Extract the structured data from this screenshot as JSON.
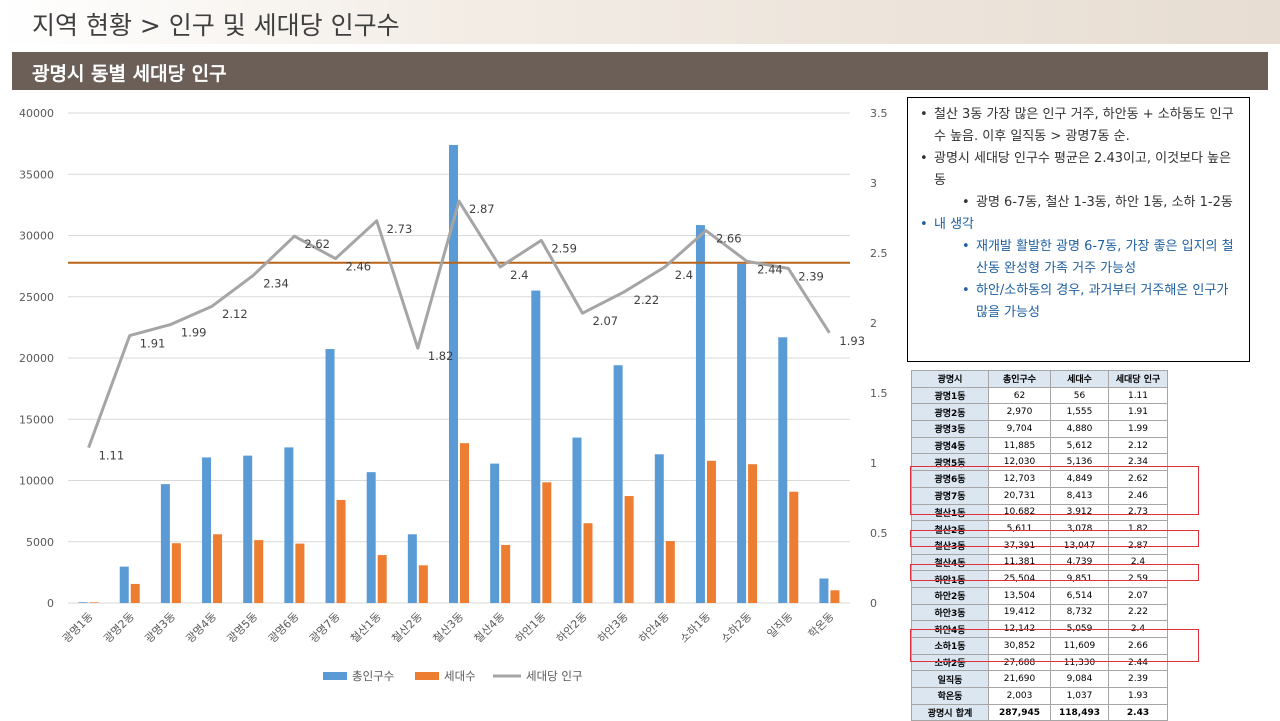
{
  "page": {
    "header": "지역 현황 > 인구 및 세대당 인구수",
    "subheader": "광명시 동별 세대당 인구"
  },
  "colors": {
    "population": "#5b9bd5",
    "households": "#ed7d31",
    "ratio": "#a5a5a5",
    "average": "#b8641b",
    "highlight": "#e0313b"
  },
  "chart_data": {
    "type": "bar",
    "categories": [
      "광명1동",
      "광명2동",
      "광명3동",
      "광명4동",
      "광명5동",
      "광명6동",
      "광명7동",
      "철산1동",
      "철산2동",
      "철산3동",
      "철산4동",
      "하안1동",
      "하안2동",
      "하안3동",
      "하안4동",
      "소하1동",
      "소하2동",
      "일직동",
      "학온동"
    ],
    "series": [
      {
        "name": "총인구수",
        "type": "bar",
        "axis": "left",
        "values": [
          62,
          2970,
          9704,
          11885,
          12030,
          12703,
          20731,
          10682,
          5611,
          37391,
          11381,
          25504,
          13504,
          19412,
          12142,
          30852,
          27688,
          21690,
          2003
        ]
      },
      {
        "name": "세대수",
        "type": "bar",
        "axis": "left",
        "values": [
          56,
          1555,
          4880,
          5612,
          5136,
          4849,
          8413,
          3912,
          3078,
          13047,
          4739,
          9851,
          6514,
          8732,
          5059,
          11609,
          11330,
          9084,
          1037
        ]
      },
      {
        "name": "세대당 인구",
        "type": "line",
        "axis": "right",
        "values": [
          1.11,
          1.91,
          1.99,
          2.12,
          2.34,
          2.62,
          2.46,
          2.73,
          1.82,
          2.87,
          2.4,
          2.59,
          2.07,
          2.22,
          2.4,
          2.66,
          2.44,
          2.39,
          1.93
        ]
      }
    ],
    "data_labels": [
      "1.11",
      "1.91",
      "1.99",
      "2.12",
      "2.34",
      "2.62",
      "2.46",
      "2.73",
      "1.82",
      "2.87",
      "2.4",
      "2.59",
      "2.07",
      "2.22",
      "2.4",
      "2.66",
      "2.44",
      "2.39",
      "1.93"
    ],
    "average_line": 2.43,
    "left_axis": {
      "ylim": [
        0,
        40000
      ],
      "ticks": [
        "0",
        "5000",
        "10000",
        "15000",
        "20000",
        "25000",
        "30000",
        "35000",
        "40000"
      ]
    },
    "right_axis": {
      "ylim": [
        0,
        3.5
      ],
      "ticks": [
        "0",
        "0.5",
        "1",
        "1.5",
        "2",
        "2.5",
        "3",
        "3.5"
      ]
    },
    "legend": {
      "position": "bottom",
      "items": [
        "총인구수",
        "세대수",
        "세대당 인구"
      ]
    },
    "grid": true
  },
  "notes": {
    "item1": "철산 3동 가장 많은 인구 거주, 하안동 + 소하동도 인구수 높음. 이후 일직동 > 광명7동 순.",
    "item2": "광명시 세대당 인구수 평균은 2.43이고, 이것보다 높은 동",
    "item2_sub": "광명 6-7동, 철산 1-3동, 하안 1동, 소하 1-2동",
    "item3": "내 생각",
    "item3_sub1": "재개발 활발한 광명 6-7동, 가장 좋은 입지의 철산동 완성형 가족 거주 가능성",
    "item3_sub2": "하안/소하동의 경우, 과거부터 거주해온 인구가 많을 가능성"
  },
  "table": {
    "headers": [
      "광명시",
      "총인구수",
      "세대수",
      "세대당 인구"
    ],
    "rows": [
      [
        "광명1동",
        "62",
        "56",
        "1.11"
      ],
      [
        "광명2동",
        "2,970",
        "1,555",
        "1.91"
      ],
      [
        "광명3동",
        "9,704",
        "4,880",
        "1.99"
      ],
      [
        "광명4동",
        "11,885",
        "5,612",
        "2.12"
      ],
      [
        "광명5동",
        "12,030",
        "5,136",
        "2.34"
      ],
      [
        "광명6동",
        "12,703",
        "4,849",
        "2.62"
      ],
      [
        "광명7동",
        "20,731",
        "8,413",
        "2.46"
      ],
      [
        "철산1동",
        "10,682",
        "3,912",
        "2.73"
      ],
      [
        "철산2동",
        "5,611",
        "3,078",
        "1.82"
      ],
      [
        "철산3동",
        "37,391",
        "13,047",
        "2.87"
      ],
      [
        "철산4동",
        "11,381",
        "4,739",
        "2.4"
      ],
      [
        "하안1동",
        "25,504",
        "9,851",
        "2.59"
      ],
      [
        "하안2동",
        "13,504",
        "6,514",
        "2.07"
      ],
      [
        "하안3동",
        "19,412",
        "8,732",
        "2.22"
      ],
      [
        "하안4동",
        "12,142",
        "5,059",
        "2.4"
      ],
      [
        "소하1동",
        "30,852",
        "11,609",
        "2.66"
      ],
      [
        "소하2동",
        "27,688",
        "11,330",
        "2.44"
      ],
      [
        "일직동",
        "21,690",
        "9,084",
        "2.39"
      ],
      [
        "학온동",
        "2,003",
        "1,037",
        "1.93"
      ]
    ],
    "total": [
      "광명시 합계",
      "287,945",
      "118,493",
      "2.43"
    ]
  }
}
